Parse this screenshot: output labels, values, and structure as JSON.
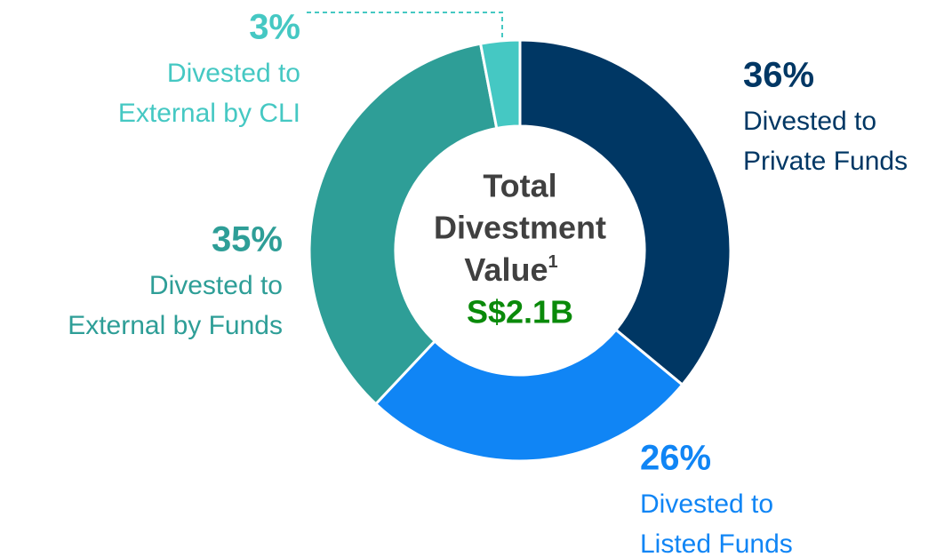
{
  "chart_data": {
    "type": "donut",
    "categories": [
      [
        "Divested to",
        "Private Funds"
      ],
      [
        "Divested to",
        "Listed Funds"
      ],
      [
        "Divested to",
        "External by Funds"
      ],
      [
        "Divested to",
        "External by CLI"
      ]
    ],
    "values": [
      36,
      26,
      35,
      3
    ],
    "value_labels": [
      "36%",
      "26%",
      "35%",
      "3%"
    ],
    "colors": [
      "#003764",
      "#1085f5",
      "#2e9e97",
      "#45c8c3"
    ],
    "center_label": [
      "Total",
      "Divestment",
      "Value"
    ],
    "center_footnote": "1",
    "center_value": "S$2.1B"
  }
}
